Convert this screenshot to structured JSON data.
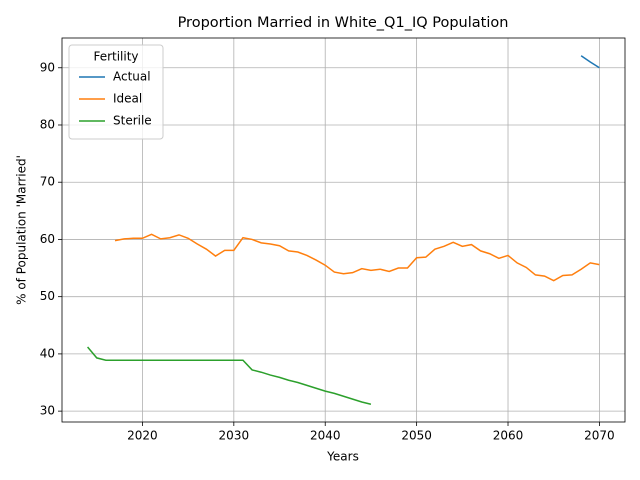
{
  "chart_data": {
    "type": "line",
    "title": "Proportion Married in White_Q1_IQ Population",
    "x_label": "Years",
    "y_label": "% of Population 'Married'",
    "x": [
      2014,
      2015,
      2016,
      2017,
      2018,
      2019,
      2020,
      2021,
      2022,
      2023,
      2024,
      2025,
      2026,
      2027,
      2028,
      2029,
      2030,
      2031,
      2032,
      2033,
      2034,
      2035,
      2036,
      2037,
      2038,
      2039,
      2040,
      2041,
      2042,
      2043,
      2044,
      2045,
      2046,
      2047,
      2048,
      2049,
      2050,
      2051,
      2052,
      2053,
      2054,
      2055,
      2056,
      2057,
      2058,
      2059,
      2060,
      2061,
      2062,
      2063,
      2064,
      2065,
      2066,
      2067,
      2068,
      2069,
      2070
    ],
    "series": [
      {
        "name": "Actual",
        "color": "#1f77b4",
        "values": [
          null,
          null,
          null,
          null,
          null,
          null,
          null,
          null,
          null,
          null,
          null,
          null,
          null,
          null,
          null,
          null,
          null,
          null,
          null,
          null,
          null,
          null,
          null,
          null,
          null,
          null,
          null,
          null,
          null,
          null,
          null,
          null,
          null,
          null,
          null,
          null,
          null,
          null,
          null,
          null,
          null,
          null,
          null,
          null,
          null,
          null,
          null,
          null,
          null,
          null,
          null,
          null,
          null,
          null,
          92.1,
          91.0,
          90.0
        ]
      },
      {
        "name": "Ideal",
        "color": "#ff7f0e",
        "values": [
          null,
          null,
          null,
          59.8,
          60.1,
          60.2,
          60.2,
          60.9,
          60.1,
          60.3,
          60.8,
          60.2,
          59.2,
          58.3,
          57.1,
          58.1,
          58.1,
          60.3,
          60.0,
          59.4,
          59.2,
          58.9,
          58.0,
          57.8,
          57.2,
          56.4,
          55.5,
          54.3,
          54.0,
          54.2,
          54.9,
          54.6,
          54.8,
          54.4,
          55.0,
          55.0,
          56.8,
          56.9,
          58.3,
          58.8,
          59.5,
          58.8,
          59.1,
          58.0,
          57.5,
          56.7,
          57.2,
          55.9,
          55.1,
          53.8,
          53.6,
          52.8,
          53.7,
          53.8,
          54.8,
          55.9,
          55.6
        ]
      },
      {
        "name": "Sterile",
        "color": "#2ca02c",
        "values": [
          41.2,
          39.3,
          38.9,
          38.9,
          38.9,
          38.9,
          38.9,
          38.9,
          38.9,
          38.9,
          38.9,
          38.9,
          38.9,
          38.9,
          38.9,
          38.9,
          38.9,
          38.9,
          37.2,
          36.8,
          36.3,
          35.9,
          35.4,
          35.0,
          34.5,
          34.0,
          33.5,
          33.1,
          32.6,
          32.1,
          31.6,
          31.2,
          null,
          null,
          null,
          null,
          null,
          null,
          null,
          null,
          null,
          null,
          null,
          null,
          null,
          null,
          null,
          null,
          null,
          null,
          null,
          null,
          null,
          null,
          null,
          null,
          null
        ]
      }
    ],
    "xlim": [
      2011.2,
      2072.8
    ],
    "ylim": [
      28.1,
      95.2
    ],
    "xticks": [
      2020,
      2030,
      2040,
      2050,
      2060,
      2070
    ],
    "yticks": [
      30,
      40,
      50,
      60,
      70,
      80,
      90
    ],
    "grid": true,
    "legend_title": "Fertility",
    "legend_position": "upper-left"
  }
}
